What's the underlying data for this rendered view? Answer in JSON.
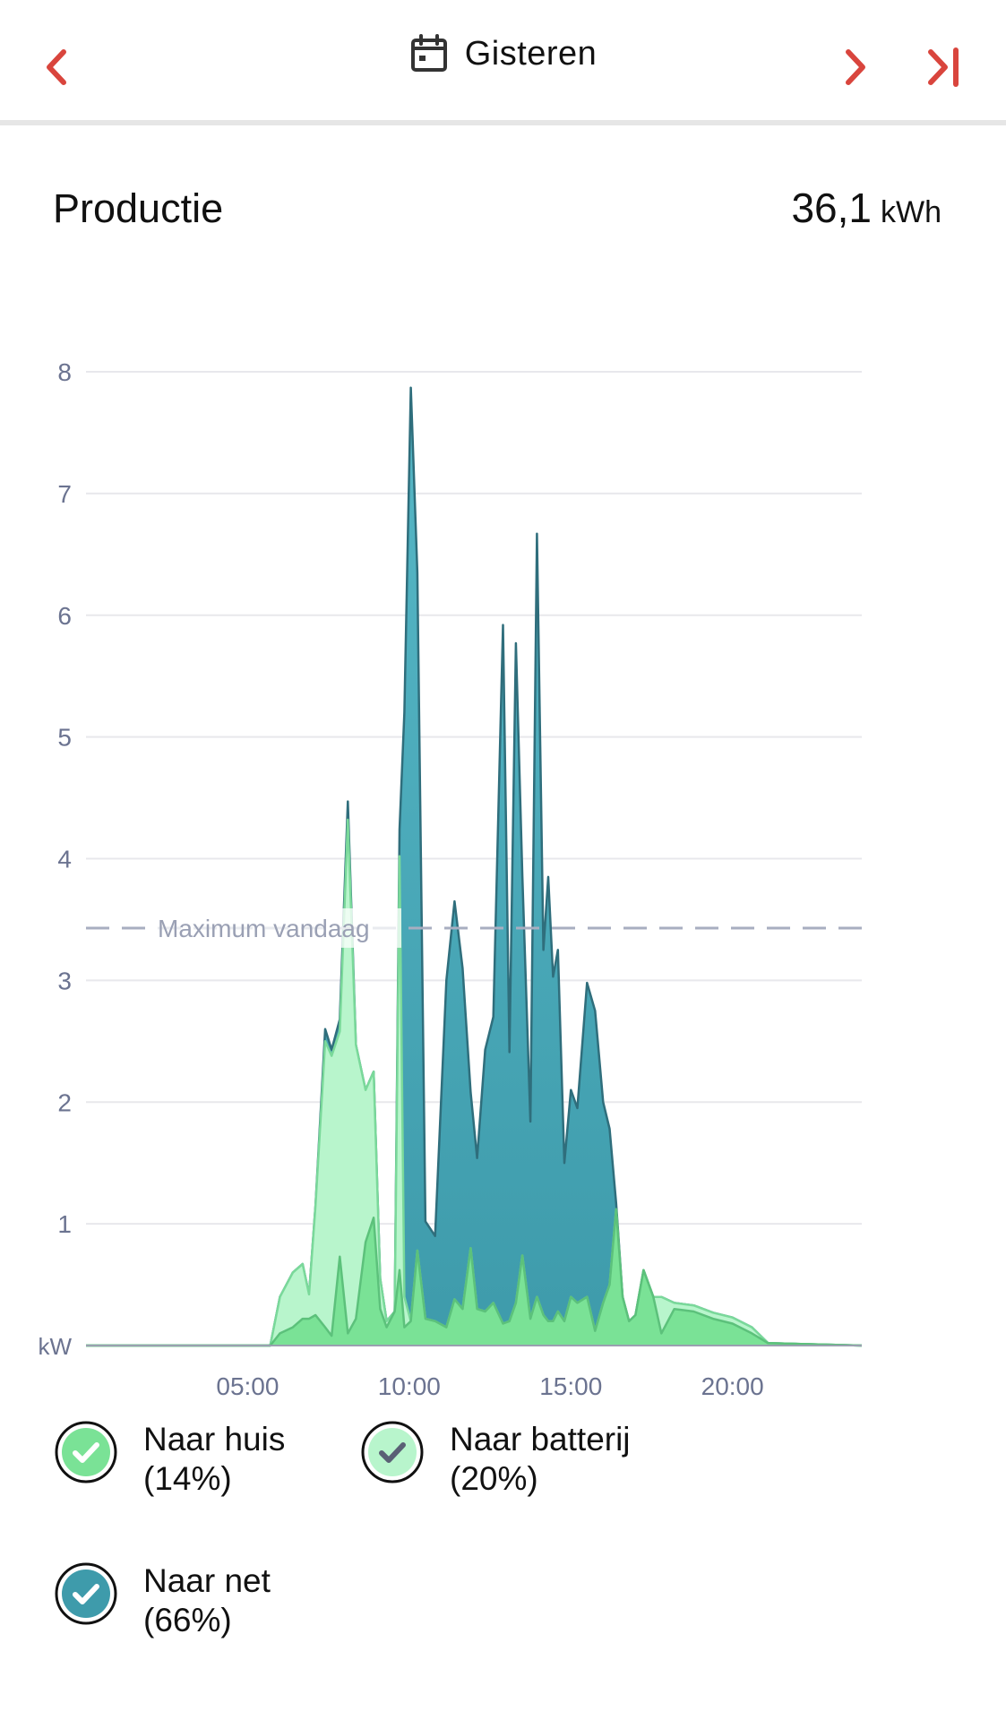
{
  "header": {
    "date_label": "Gisteren"
  },
  "summary": {
    "title": "Productie",
    "total_value": "36,1",
    "total_unit": "kWh"
  },
  "colors": {
    "accent": "#d9453d",
    "home": "#7ae296",
    "battery": "#b8f5cc",
    "grid": "#3e9bab",
    "grid_light": "#56b7c6",
    "axis_text": "#6b7390"
  },
  "chart_data": {
    "type": "area",
    "stacked": true,
    "unit_label": "kW",
    "ylim": [
      0,
      8
    ],
    "y_ticks": [
      1,
      2,
      3,
      4,
      5,
      6,
      7,
      8
    ],
    "xlim": [
      0,
      24
    ],
    "x_ticks": [
      {
        "value": 5,
        "label": "05:00"
      },
      {
        "value": 10,
        "label": "10:00"
      },
      {
        "value": 15,
        "label": "15:00"
      },
      {
        "value": 20,
        "label": "20:00"
      }
    ],
    "reference_line": {
      "value": 3.43,
      "label": "Maximum vandaag"
    },
    "x": [
      0,
      5.7,
      6.0,
      6.4,
      6.7,
      6.9,
      7.1,
      7.4,
      7.6,
      7.85,
      8.1,
      8.35,
      8.65,
      8.9,
      9.1,
      9.3,
      9.55,
      9.7,
      9.85,
      10.05,
      10.25,
      10.5,
      10.8,
      11.15,
      11.4,
      11.65,
      11.9,
      12.1,
      12.35,
      12.6,
      12.9,
      13.1,
      13.3,
      13.5,
      13.75,
      13.95,
      14.15,
      14.3,
      14.45,
      14.6,
      14.8,
      15.0,
      15.2,
      15.5,
      15.75,
      16.0,
      16.2,
      16.4,
      16.6,
      16.8,
      17.0,
      17.25,
      17.55,
      17.8,
      18.2,
      18.8,
      19.4,
      20.0,
      20.6,
      21.1,
      24
    ],
    "series": [
      {
        "name": "Naar huis (14%)",
        "values": [
          0,
          0,
          0.1,
          0.15,
          0.22,
          0.22,
          0.25,
          0.15,
          0.08,
          0.73,
          0.1,
          0.22,
          0.85,
          1.05,
          0.3,
          0.15,
          0.28,
          0.62,
          0.15,
          0.2,
          0.78,
          0.22,
          0.2,
          0.15,
          0.38,
          0.3,
          0.8,
          0.3,
          0.28,
          0.35,
          0.18,
          0.2,
          0.35,
          0.74,
          0.22,
          0.4,
          0.25,
          0.2,
          0.2,
          0.28,
          0.2,
          0.4,
          0.35,
          0.4,
          0.12,
          0.35,
          0.5,
          1.12,
          0.4,
          0.2,
          0.25,
          0.62,
          0.4,
          0.1,
          0.3,
          0.28,
          0.22,
          0.18,
          0.1,
          0.02,
          0
        ]
      },
      {
        "name": "Naar batterij (20%)",
        "values": [
          0,
          0,
          0.3,
          0.45,
          0.45,
          0.2,
          0.9,
          2.35,
          2.3,
          1.85,
          4.22,
          2.25,
          1.25,
          1.2,
          0.25,
          0.05,
          0,
          3.4,
          0.25,
          0,
          0,
          0,
          0,
          0,
          0,
          0,
          0,
          0,
          0,
          0,
          0,
          0,
          0,
          0,
          0,
          0,
          0,
          0,
          0,
          0,
          0,
          0,
          0,
          0,
          0,
          0,
          0,
          0,
          0,
          0,
          0,
          0,
          0,
          0.3,
          0.05,
          0.05,
          0.05,
          0.05,
          0.05,
          0,
          0
        ]
      },
      {
        "name": "Naar net (66%)",
        "values": [
          0,
          0,
          0,
          0,
          0,
          0,
          0,
          0.1,
          0.05,
          0.1,
          0.15,
          0,
          0,
          0,
          0,
          0,
          0,
          0.22,
          4.8,
          7.67,
          5.57,
          0.8,
          0.7,
          2.85,
          3.27,
          2.8,
          1.28,
          1.24,
          2.15,
          2.35,
          5.74,
          2.21,
          5.42,
          3.12,
          1.62,
          6.27,
          3.0,
          3.65,
          2.83,
          2.97,
          1.3,
          1.7,
          1.6,
          2.58,
          2.63,
          1.65,
          1.28,
          0.05,
          0,
          0,
          0,
          0,
          0,
          0,
          0,
          0,
          0,
          0,
          0,
          0,
          0
        ]
      }
    ]
  },
  "legend": [
    {
      "label": "Naar huis",
      "pct": "(14%)"
    },
    {
      "label": "Naar batterij",
      "pct": "(20%)"
    },
    {
      "label": "Naar net",
      "pct": "(66%)"
    }
  ]
}
